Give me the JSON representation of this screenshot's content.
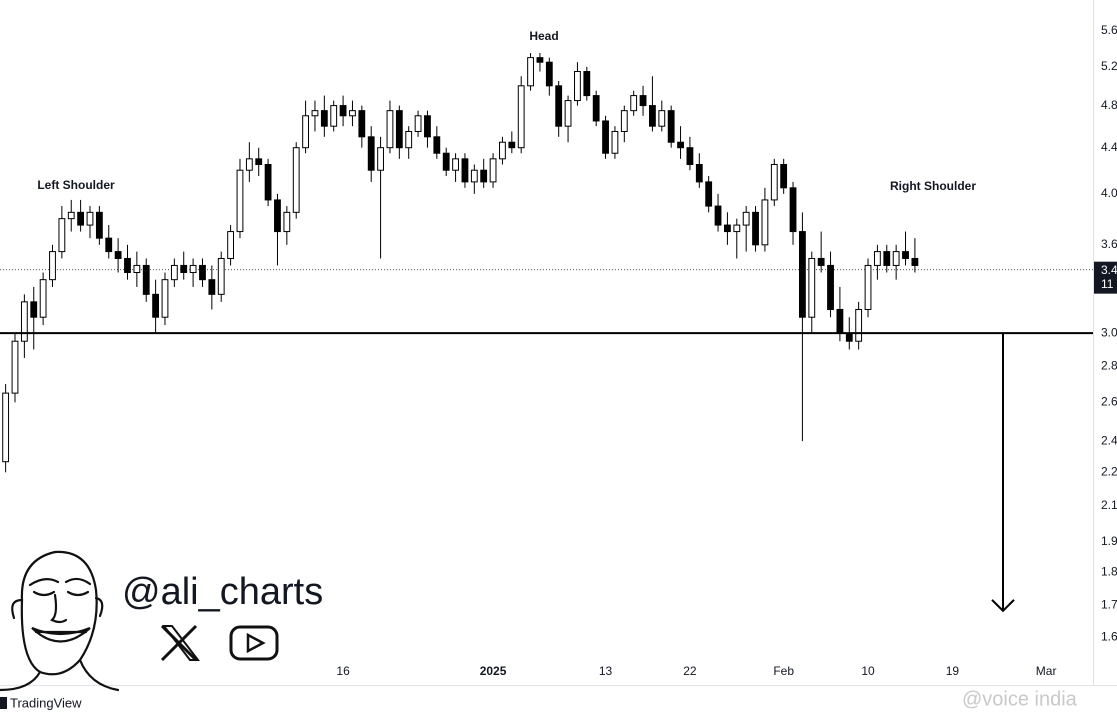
{
  "chart_data": {
    "type": "candlestick",
    "annotations": [
      "Left Shoulder",
      "Head",
      "Right Shoulder"
    ],
    "x": [
      -36,
      -35,
      -34,
      -33,
      -32,
      -31,
      -30,
      -29,
      -28,
      -27,
      -26,
      -25,
      -24,
      -23,
      -22,
      -21,
      -20,
      -19,
      -18,
      -17,
      -16,
      -15,
      -14,
      -13,
      -12,
      -11,
      -10,
      -9,
      -8,
      -7,
      -6,
      -5,
      -4,
      -3,
      -2,
      -1,
      0,
      1,
      2,
      3,
      4,
      5,
      6,
      7,
      8,
      9,
      10,
      11,
      12,
      13,
      14,
      15,
      16,
      17,
      18,
      19,
      20,
      21,
      22,
      23,
      24,
      25,
      26,
      27,
      28,
      29,
      30,
      31,
      32,
      33,
      34,
      35,
      36,
      37,
      38,
      39,
      40,
      41,
      42,
      43,
      44,
      45,
      46,
      47,
      48,
      49,
      50,
      51,
      52,
      53,
      54,
      55,
      56,
      57,
      58,
      59,
      60,
      61
    ],
    "open": [
      2.3,
      2.65,
      2.95,
      3.2,
      3.1,
      3.35,
      3.55,
      3.8,
      3.85,
      3.75,
      3.85,
      3.65,
      3.55,
      3.5,
      3.4,
      3.45,
      3.25,
      3.1,
      3.35,
      3.45,
      3.4,
      3.45,
      3.35,
      3.25,
      3.5,
      3.7,
      4.2,
      4.3,
      4.25,
      3.95,
      3.7,
      3.85,
      4.4,
      4.7,
      4.75,
      4.6,
      4.8,
      4.7,
      4.75,
      4.5,
      4.2,
      4.4,
      4.75,
      4.4,
      4.55,
      4.7,
      4.5,
      4.35,
      4.2,
      4.3,
      4.1,
      4.2,
      4.1,
      4.3,
      4.45,
      4.4,
      5.0,
      5.3,
      5.25,
      5.0,
      4.6,
      4.85,
      5.15,
      4.9,
      4.65,
      4.35,
      4.55,
      4.75,
      4.9,
      4.8,
      4.6,
      4.75,
      4.45,
      4.4,
      4.25,
      4.1,
      3.9,
      3.75,
      3.7,
      3.75,
      3.85,
      3.6,
      3.95,
      4.25,
      4.05,
      3.7,
      3.1,
      3.5,
      3.45,
      3.15,
      3.0,
      2.95,
      3.15,
      3.45,
      3.55,
      3.45,
      3.55,
      3.5
    ],
    "high": [
      2.7,
      3.0,
      3.25,
      3.3,
      3.4,
      3.6,
      3.9,
      3.95,
      3.95,
      3.9,
      3.9,
      3.75,
      3.65,
      3.6,
      3.55,
      3.5,
      3.35,
      3.4,
      3.5,
      3.55,
      3.5,
      3.5,
      3.45,
      3.55,
      3.75,
      4.3,
      4.45,
      4.4,
      4.3,
      4.0,
      3.9,
      4.45,
      4.85,
      4.85,
      4.9,
      4.85,
      4.9,
      4.85,
      4.8,
      4.6,
      4.5,
      4.85,
      4.8,
      4.6,
      4.75,
      4.75,
      4.6,
      4.4,
      4.35,
      4.35,
      4.25,
      4.3,
      4.35,
      4.5,
      4.55,
      5.1,
      5.35,
      5.35,
      5.3,
      5.05,
      4.9,
      5.25,
      5.2,
      4.95,
      4.7,
      4.6,
      4.8,
      4.95,
      5.0,
      5.1,
      4.85,
      4.8,
      4.6,
      4.5,
      4.35,
      4.15,
      4.0,
      3.85,
      3.8,
      3.9,
      3.9,
      4.05,
      4.3,
      4.3,
      4.1,
      3.85,
      3.55,
      3.7,
      3.55,
      3.3,
      3.1,
      3.2,
      3.5,
      3.6,
      3.6,
      3.6,
      3.7,
      3.65
    ],
    "low": [
      2.25,
      2.6,
      2.85,
      2.9,
      3.05,
      3.3,
      3.5,
      3.7,
      3.7,
      3.65,
      3.6,
      3.5,
      3.4,
      3.35,
      3.3,
      3.2,
      3.0,
      3.05,
      3.3,
      3.35,
      3.3,
      3.3,
      3.15,
      3.2,
      3.45,
      3.65,
      4.1,
      4.15,
      3.9,
      3.45,
      3.6,
      3.8,
      4.35,
      4.55,
      4.5,
      4.55,
      4.6,
      4.6,
      4.4,
      4.1,
      3.5,
      4.35,
      4.3,
      4.3,
      4.5,
      4.4,
      4.3,
      4.15,
      4.1,
      4.05,
      4.0,
      4.05,
      4.05,
      4.25,
      4.35,
      4.35,
      4.95,
      5.15,
      4.9,
      4.5,
      4.45,
      4.8,
      4.85,
      4.6,
      4.3,
      4.3,
      4.45,
      4.7,
      4.7,
      4.55,
      4.55,
      4.4,
      4.3,
      4.2,
      4.05,
      3.85,
      3.7,
      3.6,
      3.5,
      3.55,
      3.55,
      3.55,
      3.9,
      4.0,
      3.6,
      2.4,
      3.0,
      3.4,
      3.1,
      2.95,
      2.9,
      2.9,
      3.1,
      3.35,
      3.4,
      3.35,
      3.45,
      3.4
    ],
    "close": [
      2.65,
      2.95,
      3.2,
      3.1,
      3.35,
      3.55,
      3.8,
      3.85,
      3.75,
      3.85,
      3.65,
      3.55,
      3.5,
      3.4,
      3.45,
      3.25,
      3.1,
      3.35,
      3.45,
      3.4,
      3.45,
      3.35,
      3.25,
      3.5,
      3.7,
      4.2,
      4.3,
      4.25,
      3.95,
      3.7,
      3.85,
      4.4,
      4.7,
      4.75,
      4.6,
      4.8,
      4.7,
      4.75,
      4.5,
      4.2,
      4.4,
      4.75,
      4.4,
      4.55,
      4.7,
      4.5,
      4.35,
      4.2,
      4.3,
      4.1,
      4.2,
      4.1,
      4.3,
      4.45,
      4.4,
      5.0,
      5.3,
      5.25,
      5.0,
      4.6,
      4.85,
      5.15,
      4.9,
      4.65,
      4.35,
      4.55,
      4.75,
      4.9,
      4.8,
      4.6,
      4.75,
      4.45,
      4.4,
      4.25,
      4.1,
      3.9,
      3.75,
      3.7,
      3.75,
      3.85,
      3.6,
      3.95,
      4.25,
      4.05,
      3.7,
      3.1,
      3.5,
      3.45,
      3.15,
      3.0,
      2.95,
      3.15,
      3.45,
      3.55,
      3.45,
      3.55,
      3.5,
      3.45
    ],
    "up_color": "#ffffff",
    "down_color": "#000000",
    "xlim": [
      -36.6,
      80
    ],
    "xticks": [
      {
        "value": 0,
        "label": "16"
      },
      {
        "value": 16,
        "label": "2025"
      },
      {
        "value": 28,
        "label": "13"
      },
      {
        "value": 37,
        "label": "22"
      },
      {
        "value": 47,
        "label": "Feb"
      },
      {
        "value": 56,
        "label": "10"
      },
      {
        "value": 65,
        "label": "19"
      },
      {
        "value": 75,
        "label": "Mar"
      }
    ],
    "ylim": [
      1.45,
      5.97
    ],
    "log_scale": true,
    "grid": false,
    "yticks": [
      5.6,
      5.2,
      4.8,
      4.4,
      {
        "value": 4,
        "label": "4.0"
      },
      3.6,
      {
        "value": 3,
        "label": "3.0"
      },
      2.8,
      2.6,
      2.4,
      {
        "value": 2.25,
        "label": "2.2"
      },
      2.1,
      {
        "value": 1.95,
        "label": "1.9"
      },
      {
        "value": 1.83,
        "label": "1.8"
      },
      {
        "value": 1.71,
        "label": "1.7"
      },
      1.6
    ],
    "neckline": 3.0,
    "target": 1.69,
    "current_price": {
      "value": 3.42,
      "label": "3.4"
    },
    "countdown": "11"
  },
  "watermark": {
    "handle": "@ali_charts",
    "platform": "TradingView",
    "credit": "@voice india"
  }
}
